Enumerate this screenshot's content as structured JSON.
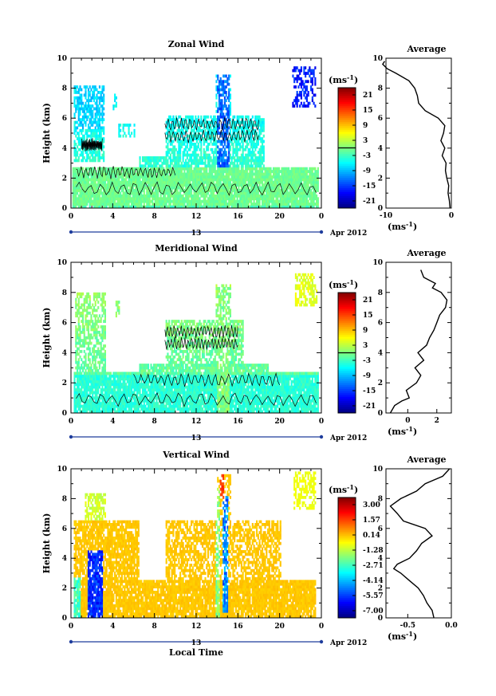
{
  "figure": {
    "date_text": "Apr 2012",
    "day_label": "13",
    "xlabel": "Local Time",
    "avg_title": "Average",
    "unit": "(ms",
    "unit_exp": "-1",
    "unit_close": ")"
  },
  "chart_data": [
    {
      "type": "heatmap",
      "title": "Zonal Wind",
      "ylabel": "Height (km)",
      "xlim": [
        0,
        24
      ],
      "ylim": [
        0,
        10
      ],
      "x_ticks": [
        "0",
        "4",
        "8",
        "12",
        "16",
        "20",
        "0"
      ],
      "y_ticks": [
        "0",
        "2",
        "4",
        "6",
        "8",
        "10"
      ],
      "colorbar_ticks": [
        "21",
        "15",
        "9",
        "3",
        "-3",
        "-9",
        "-15",
        "-21"
      ],
      "colorbar_range": [
        -24,
        24
      ],
      "zero_contour": true,
      "average_profile": {
        "xlim": [
          -10,
          0
        ],
        "x_ticks": [
          "-10",
          "0"
        ],
        "height": [
          0.0,
          0.5,
          1.0,
          1.5,
          2.0,
          2.5,
          3.0,
          3.5,
          4.0,
          4.5,
          5.0,
          5.5,
          6.0,
          6.5,
          7.0,
          7.5,
          8.0,
          8.5,
          9.0,
          9.3,
          9.6,
          9.8
        ],
        "value": [
          -0.2,
          -0.3,
          -0.5,
          -0.4,
          -0.7,
          -0.9,
          -0.8,
          -1.4,
          -1.0,
          -1.6,
          -1.2,
          -1.0,
          -2.0,
          -4.0,
          -5.0,
          -5.2,
          -5.6,
          -6.5,
          -8.5,
          -9.8,
          -10.5,
          -10.2
        ]
      }
    },
    {
      "type": "heatmap",
      "title": "Meridional Wind",
      "ylabel": "Height (km)",
      "xlim": [
        0,
        24
      ],
      "ylim": [
        0,
        10
      ],
      "x_ticks": [
        "0",
        "4",
        "8",
        "12",
        "16",
        "20",
        "0"
      ],
      "y_ticks": [
        "0",
        "2",
        "4",
        "6",
        "8",
        "10"
      ],
      "colorbar_ticks": [
        "21",
        "15",
        "9",
        "3",
        "-3",
        "-9",
        "-15",
        "-21"
      ],
      "colorbar_range": [
        -24,
        24
      ],
      "zero_contour": true,
      "average_profile": {
        "xlim": [
          -1.5,
          3
        ],
        "x_ticks": [
          "0",
          "2"
        ],
        "height": [
          0.0,
          0.5,
          0.8,
          1.0,
          1.5,
          2.0,
          2.5,
          3.0,
          3.5,
          4.0,
          4.5,
          5.0,
          5.5,
          6.0,
          6.5,
          7.0,
          7.5,
          8.0,
          8.3,
          8.6,
          9.0,
          9.5
        ],
        "value": [
          -1.2,
          -0.9,
          -0.4,
          0.1,
          -0.1,
          0.6,
          0.9,
          0.5,
          1.1,
          0.7,
          1.3,
          1.5,
          1.8,
          2.0,
          2.2,
          2.6,
          2.7,
          2.3,
          1.7,
          1.9,
          1.1,
          0.9
        ]
      }
    },
    {
      "type": "heatmap",
      "title": "Vertical Wind",
      "ylabel": "Height (km)",
      "xlim": [
        0,
        24
      ],
      "ylim": [
        0,
        10
      ],
      "x_ticks": [
        "0",
        "4",
        "8",
        "12",
        "16",
        "20",
        "0"
      ],
      "y_ticks": [
        "0",
        "2",
        "4",
        "6",
        "8",
        "10"
      ],
      "colorbar_ticks": [
        "3.00",
        "1.57",
        "0.14",
        "-1.28",
        "-2.71",
        "-4.14",
        "-5.57",
        "-7.00"
      ],
      "colorbar_range": [
        -7.7,
        3.7
      ],
      "zero_contour": false,
      "average_profile": {
        "xlim": [
          -0.75,
          0.0
        ],
        "x_ticks": [
          "-0.5",
          "0.0"
        ],
        "height": [
          0.0,
          0.5,
          1.0,
          1.5,
          2.0,
          2.5,
          3.0,
          3.3,
          3.6,
          4.0,
          4.5,
          5.0,
          5.5,
          6.0,
          6.5,
          7.0,
          7.5,
          8.0,
          8.5,
          9.0,
          9.5,
          10.0
        ],
        "value": [
          -0.2,
          -0.22,
          -0.28,
          -0.32,
          -0.38,
          -0.48,
          -0.58,
          -0.66,
          -0.62,
          -0.48,
          -0.4,
          -0.34,
          -0.22,
          -0.3,
          -0.55,
          -0.62,
          -0.7,
          -0.58,
          -0.4,
          -0.3,
          -0.1,
          -0.02
        ]
      }
    }
  ]
}
